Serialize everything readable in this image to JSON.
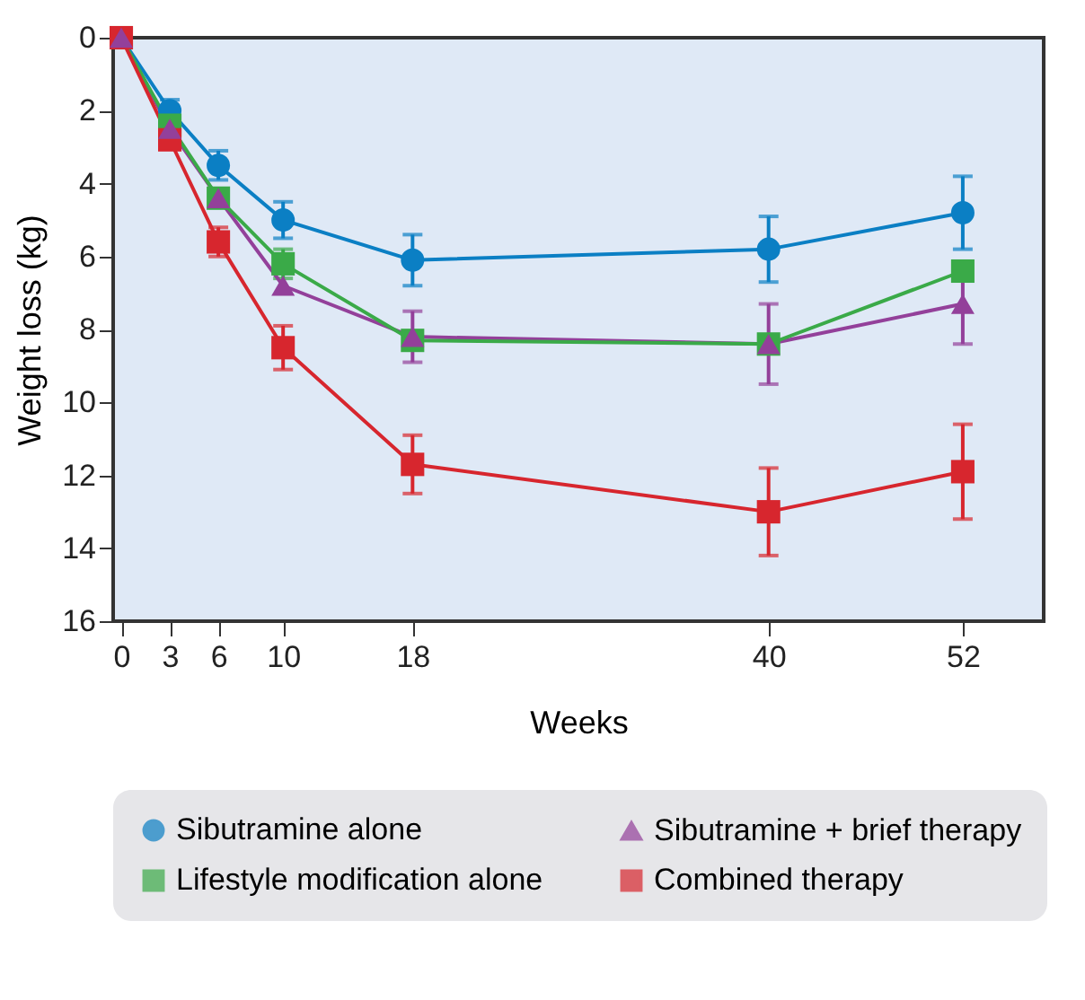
{
  "chart_data": {
    "type": "line",
    "xlabel": "Weeks",
    "ylabel": "Weight loss (kg)",
    "x": [
      0,
      3,
      6,
      10,
      18,
      40,
      52
    ],
    "xlim": [
      -0.5,
      57
    ],
    "xticks": [
      0,
      3,
      6,
      10,
      18,
      40,
      52
    ],
    "ylim": [
      16,
      0
    ],
    "yticks": [
      0,
      2,
      4,
      6,
      8,
      10,
      12,
      14,
      16
    ],
    "grid": false,
    "legend": "bottom",
    "series": [
      {
        "name": "Sibutramine alone",
        "color": "#0b7fc4",
        "marker": "circle",
        "values": [
          0,
          2.0,
          3.5,
          5.0,
          6.1,
          5.8,
          4.8
        ],
        "errors": [
          null,
          0.3,
          0.4,
          0.5,
          0.7,
          0.9,
          1.0
        ]
      },
      {
        "name": "Sibutramine + brief therapy",
        "color": "#93409a",
        "marker": "triangle",
        "values": [
          0,
          2.5,
          4.4,
          6.8,
          8.2,
          8.4,
          7.3
        ],
        "errors": [
          null,
          null,
          null,
          null,
          0.7,
          1.1,
          1.1
        ]
      },
      {
        "name": "Lifestyle modification alone",
        "color": "#3aaa48",
        "marker": "square",
        "values": [
          0,
          2.4,
          4.4,
          6.2,
          8.3,
          8.4,
          6.4
        ],
        "errors": [
          null,
          null,
          null,
          0.4,
          null,
          null,
          null
        ]
      },
      {
        "name": "Combined therapy",
        "color": "#d7262e",
        "marker": "square",
        "values": [
          0,
          2.8,
          5.6,
          8.5,
          11.7,
          13.0,
          11.9
        ],
        "errors": [
          null,
          null,
          0.4,
          0.6,
          0.8,
          1.2,
          1.3
        ]
      }
    ]
  }
}
